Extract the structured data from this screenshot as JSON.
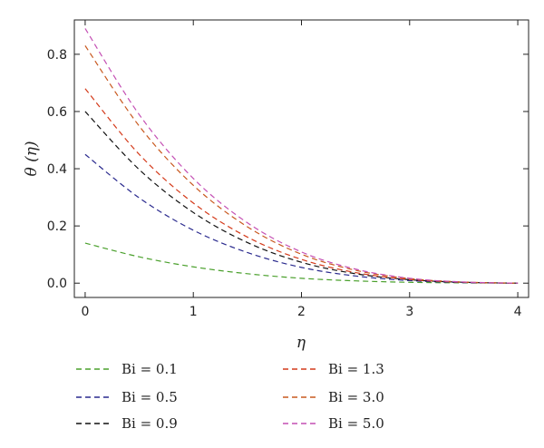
{
  "chart_data": {
    "type": "line",
    "title": "",
    "xlabel": "η",
    "ylabel": "θ (η)",
    "xlim": [
      -0.1,
      4.1
    ],
    "ylim": [
      -0.05,
      0.92
    ],
    "xticks": [
      0,
      1,
      2,
      3,
      4
    ],
    "xtick_labels": [
      "0",
      "1",
      "2",
      "3",
      "4"
    ],
    "yticks": [
      0.0,
      0.2,
      0.4,
      0.6,
      0.8
    ],
    "ytick_labels": [
      "0.0",
      "0.2",
      "0.4",
      "0.6",
      "0.8"
    ],
    "grid": false,
    "legend_position": "bottom",
    "x": [
      0,
      0.5,
      1,
      1.5,
      2,
      2.5,
      3,
      3.5,
      4
    ],
    "series": [
      {
        "name": "Bi = 0.1",
        "color": "#4aa02c",
        "values": [
          0.14,
          0.092,
          0.057,
          0.033,
          0.017,
          0.008,
          0.003,
          0.001,
          0.0
        ]
      },
      {
        "name": "Bi = 0.5",
        "color": "#2a2a8e",
        "values": [
          0.45,
          0.298,
          0.185,
          0.107,
          0.055,
          0.025,
          0.009,
          0.002,
          0.0
        ]
      },
      {
        "name": "Bi = 0.9",
        "color": "#111111",
        "values": [
          0.6,
          0.397,
          0.247,
          0.142,
          0.073,
          0.033,
          0.012,
          0.003,
          0.0
        ]
      },
      {
        "name": "Bi = 1.3",
        "color": "#d43a1a",
        "values": [
          0.68,
          0.45,
          0.28,
          0.161,
          0.083,
          0.037,
          0.013,
          0.003,
          0.0
        ]
      },
      {
        "name": "Bi = 3.0",
        "color": "#c8581e",
        "values": [
          0.83,
          0.549,
          0.342,
          0.197,
          0.101,
          0.045,
          0.016,
          0.004,
          0.0
        ]
      },
      {
        "name": "Bi = 5.0",
        "color": "#c44fb4",
        "values": [
          0.89,
          0.589,
          0.366,
          0.211,
          0.109,
          0.049,
          0.017,
          0.004,
          0.0
        ]
      }
    ]
  }
}
